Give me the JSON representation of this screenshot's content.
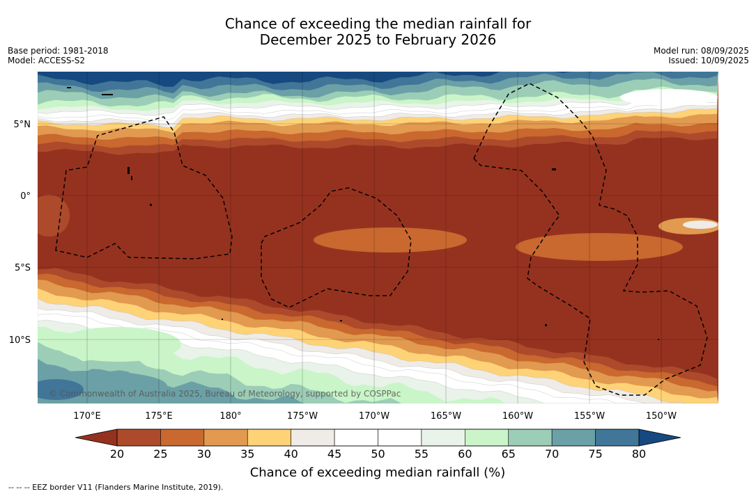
{
  "title": {
    "line1": "Chance of exceeding the median rainfall for",
    "line2": "December 2025 to February 2026"
  },
  "meta_left": {
    "base_period": "Base period: 1981-2018",
    "model": "Model: ACCESS-S2"
  },
  "meta_right": {
    "model_run": "Model run: 08/09/2025",
    "issued": "Issued: 10/09/2025"
  },
  "map": {
    "lat_labels": [
      "5°N",
      "0°",
      "5°S",
      "10°S"
    ],
    "lon_labels": [
      "170°E",
      "175°E",
      "180°",
      "175°W",
      "170°W",
      "165°W",
      "160°W",
      "155°W",
      "150°W"
    ],
    "attribution": "© Commonwealth of Australia 2025, Bureau of Meteorology, supported by COSPPac",
    "band_colors": [
      "#16497f",
      "#417699",
      "#6ba0a6",
      "#9ccdb6",
      "#c9f5c8",
      "#e9f3e9",
      "#ffffff",
      "#ffffff",
      "#efebe6",
      "#fed277",
      "#e19a4f",
      "#c9682f",
      "#ad4a2b",
      "#95321f"
    ]
  },
  "colorbar": {
    "ticks": [
      "20",
      "25",
      "30",
      "35",
      "40",
      "45",
      "50",
      "55",
      "60",
      "65",
      "70",
      "75",
      "80"
    ],
    "colors": [
      "#ad4a2b",
      "#c9682f",
      "#e19a4f",
      "#fed277",
      "#efebe6",
      "#ffffff",
      "#ffffff",
      "#e9f3e9",
      "#c9f5c8",
      "#9ccdb6",
      "#6ba0a6",
      "#417699"
    ],
    "under_color": "#95321f",
    "over_color": "#16497f",
    "label": "Chance of exceeding median rainfall (%)"
  },
  "footnote": "--  --  -- EEZ border V11 (Flanders Marine Institute, 2019)."
}
